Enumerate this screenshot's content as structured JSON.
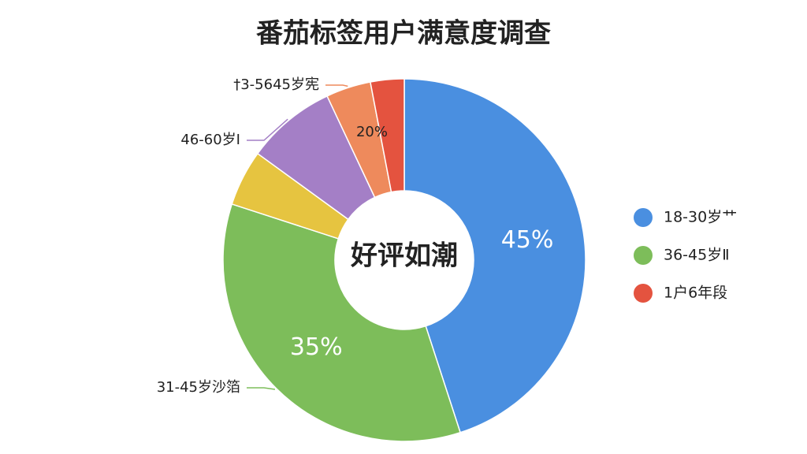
{
  "chart_data": {
    "type": "pie",
    "title": "番茄标签用户满意度调查",
    "center_text": "好评如潮",
    "values": [
      45,
      35,
      5,
      8,
      4,
      3
    ],
    "colors": [
      "#4a8fe0",
      "#7dbd5a",
      "#e6c440",
      "#a47fc6",
      "#ee8a5c",
      "#e4533f"
    ],
    "categories": [
      null,
      "31-45岁沙箔",
      null,
      "46-60岁Ⅰ",
      "†3-5645岁宪",
      null
    ],
    "value_labels": [
      "45%",
      "35%",
      null,
      null,
      null,
      null
    ],
    "annotations": [
      "20%"
    ],
    "legend": [
      {
        "name": "18-30岁艹",
        "color": "#4a8fe0"
      },
      {
        "name": "36-45岁Ⅱ",
        "color": "#7dbd5a"
      },
      {
        "name": "1户6年段",
        "color": "#e4533f"
      }
    ]
  }
}
